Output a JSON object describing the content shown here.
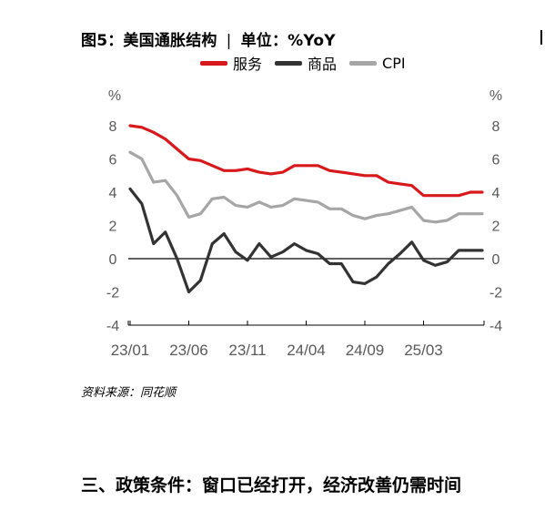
{
  "title": {
    "main": "图5：美国通胀结构",
    "separator": "|",
    "unit": "单位：%YoY"
  },
  "source": "资料来源：同花顺",
  "section_heading": "三、政策条件：窗口已经打开，经济改善仍需时间",
  "chart_data": {
    "type": "line",
    "title": "图5：美国通胀结构",
    "ylabel_left": "%",
    "ylabel_right": "%",
    "ylim": [
      -4,
      8
    ],
    "yticks": [
      -4,
      -2,
      0,
      2,
      4,
      6,
      8
    ],
    "xtick_labels": [
      "23/01",
      "23/06",
      "23/11",
      "24/04",
      "24/09",
      "25/03"
    ],
    "xtick_indices": [
      0,
      5,
      10,
      15,
      20,
      25
    ],
    "legend_position": "top",
    "zero_line": true,
    "categories": [
      "23/01",
      "23/02",
      "23/03",
      "23/04",
      "23/05",
      "23/06",
      "23/07",
      "23/08",
      "23/09",
      "23/10",
      "23/11",
      "23/12",
      "24/01",
      "24/02",
      "24/03",
      "24/04",
      "24/05",
      "24/06",
      "24/07",
      "24/08",
      "24/09",
      "24/10",
      "24/11",
      "24/12",
      "25/01",
      "25/02",
      "25/03",
      "25/04",
      "25/05",
      "25/06",
      "25/07"
    ],
    "series": [
      {
        "name": "服务",
        "color": "#d7191c",
        "values": [
          8.0,
          7.9,
          7.6,
          7.2,
          6.6,
          6.0,
          5.9,
          5.6,
          5.3,
          5.3,
          5.4,
          5.2,
          5.1,
          5.2,
          5.6,
          5.6,
          5.6,
          5.3,
          5.2,
          5.1,
          5.0,
          5.0,
          4.6,
          4.5,
          4.4,
          3.8,
          3.8,
          3.8,
          3.8,
          4.0,
          4.0
        ]
      },
      {
        "name": "商品",
        "color": "#333333",
        "values": [
          4.2,
          3.3,
          0.9,
          1.6,
          0.0,
          -2.0,
          -1.3,
          0.9,
          1.5,
          0.4,
          -0.1,
          0.9,
          0.1,
          0.4,
          0.9,
          0.5,
          0.3,
          -0.3,
          -0.3,
          -1.4,
          -1.5,
          -1.1,
          -0.3,
          0.3,
          1.0,
          -0.1,
          -0.4,
          -0.2,
          0.5,
          0.5,
          0.5
        ]
      },
      {
        "name": "CPI",
        "color": "#a6a6a6",
        "values": [
          6.4,
          6.0,
          4.6,
          4.7,
          3.8,
          2.5,
          2.7,
          3.6,
          3.7,
          3.2,
          3.1,
          3.4,
          3.1,
          3.2,
          3.6,
          3.5,
          3.4,
          3.0,
          3.0,
          2.6,
          2.4,
          2.6,
          2.7,
          2.9,
          3.1,
          2.3,
          2.2,
          2.3,
          2.7,
          2.7,
          2.7
        ]
      }
    ]
  }
}
